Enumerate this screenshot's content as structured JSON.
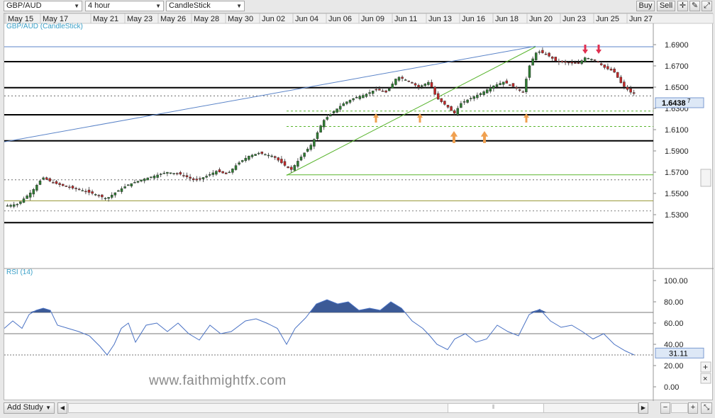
{
  "toolbar": {
    "symbol": "GBP/AUD",
    "timeframe": "4 hour",
    "chart_style": "CandleStick",
    "buy_label": "Buy",
    "sell_label": "Sell"
  },
  "dates": [
    "May 15",
    "May 17",
    "May 21",
    "May 23",
    "May 26",
    "May 28",
    "May 30",
    "Jun 02",
    "Jun 04",
    "Jun 06",
    "Jun 09",
    "Jun 11",
    "Jun 13",
    "Jun 16",
    "Jun 18",
    "Jun 20",
    "Jun 23",
    "Jun 25",
    "Jun 27"
  ],
  "price_panel": {
    "title": "GBP/AUD (CandleStick)",
    "ticks": [
      "1.6900",
      "1.6700",
      "1.6500",
      "1.6300",
      "1.6100",
      "1.5900",
      "1.5700",
      "1.5500",
      "1.5300"
    ],
    "current_price": "1.6438",
    "current_price_sup": "7"
  },
  "rsi_panel": {
    "title": "RSI (14)",
    "ticks": [
      "100.00",
      "80.00",
      "60.00",
      "40.00",
      "20.00",
      "0.00"
    ],
    "current_value": "31.11"
  },
  "watermark": "www.faithmightfx.com",
  "bottom": {
    "add_study_label": "Add Study"
  },
  "colors": {
    "up": "#2e7d32",
    "down": "#c62828",
    "rsi_fill": "#3c5a96",
    "trend_blue": "#5b84c8",
    "trend_green": "#5ab52f",
    "arrow_orange": "#f0a050",
    "arrow_red": "#e03050"
  },
  "chart_data": {
    "type": "candlestick",
    "symbol": "GBP/AUD",
    "interval": "4 hour",
    "price_range": [
      1.52,
      1.7
    ],
    "key_levels": [
      1.688,
      1.674,
      1.6495,
      1.624,
      1.5995,
      1.5225
    ],
    "last_price": 1.6438,
    "rsi_last": 31.11,
    "rsi_levels": [
      70,
      50,
      30
    ]
  }
}
